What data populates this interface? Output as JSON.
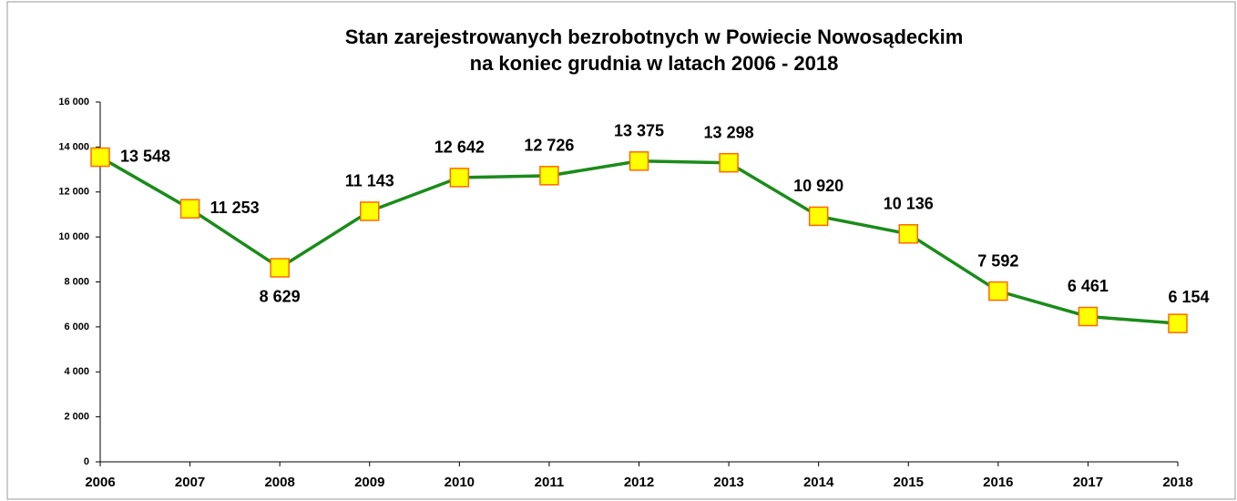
{
  "chart_data": {
    "type": "line",
    "title": [
      "Stan zarejestrowanych bezrobotnych w Powiecie Nowosądeckim",
      "na koniec grudnia w latach 2006 - 2018"
    ],
    "categories": [
      "2006",
      "2007",
      "2008",
      "2009",
      "2010",
      "2011",
      "2012",
      "2013",
      "2014",
      "2015",
      "2016",
      "2017",
      "2018"
    ],
    "series": [
      {
        "color": "#1a8c1a",
        "marker_color": "#ffff00",
        "marker_edge": "#ff6a00",
        "values": [
          13548,
          11253,
          8629,
          11143,
          12642,
          12726,
          13375,
          13298,
          10920,
          10136,
          7592,
          6461,
          6154
        ],
        "value_labels": [
          "13 548",
          "11 253",
          "8 629",
          "11 143",
          "12 642",
          "12 726",
          "13 375",
          "13 298",
          "10 920",
          "10 136",
          "7 592",
          "6 461",
          "6 154"
        ]
      }
    ],
    "ylim": [
      0,
      16000
    ],
    "yticks": [
      0,
      {
        "value": 2000,
        "label": "2 000"
      },
      {
        "value": 4000,
        "label": "4 000"
      },
      {
        "value": 6000,
        "label": "6 000"
      },
      {
        "value": 8000,
        "label": "8 000"
      },
      {
        "value": 10000,
        "label": "10 000"
      },
      {
        "value": 12000,
        "label": "12 000"
      },
      {
        "value": 14000,
        "label": "14 000"
      },
      {
        "value": 16000,
        "label": "16 000"
      }
    ],
    "grid": false
  }
}
